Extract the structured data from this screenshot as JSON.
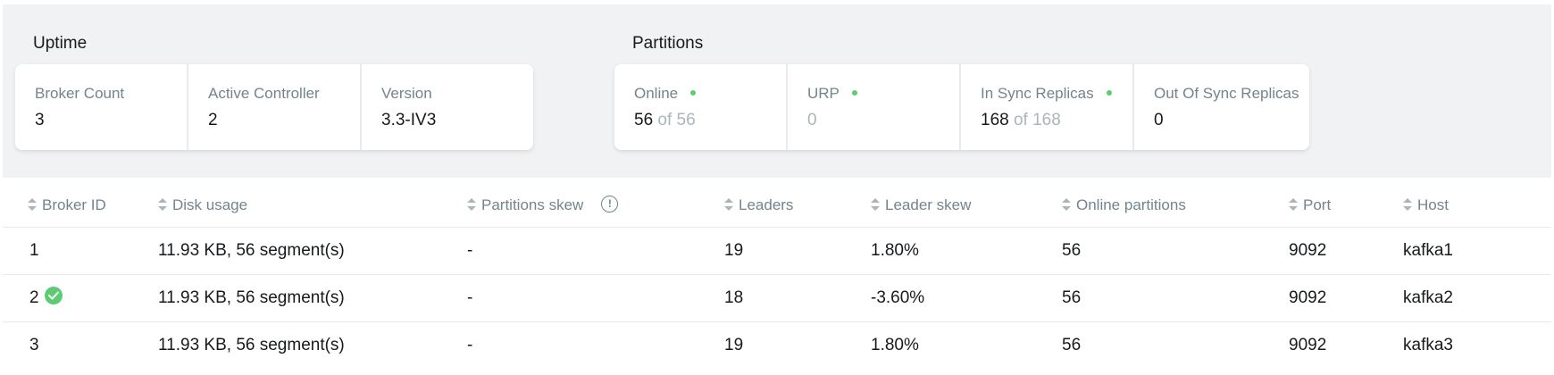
{
  "uptime": {
    "title": "Uptime",
    "cards": [
      {
        "label": "Broker Count",
        "value": "3"
      },
      {
        "label": "Active Controller",
        "value": "2"
      },
      {
        "label": "Version",
        "value": "3.3-IV3"
      }
    ]
  },
  "partitions": {
    "title": "Partitions",
    "cards": [
      {
        "label": "Online",
        "value": "56",
        "suffix": "of 56",
        "status_dot": true
      },
      {
        "label": "URP",
        "value": "",
        "suffix": "0",
        "status_dot": true
      },
      {
        "label": "In Sync Replicas",
        "value": "168",
        "suffix": "of 168",
        "status_dot": true
      },
      {
        "label": "Out Of Sync Replicas",
        "value": "0",
        "suffix": "",
        "status_dot": false
      }
    ]
  },
  "colors": {
    "status_green": "#5ccc73",
    "muted_text": "#abb5ba",
    "label_text": "#73848c"
  },
  "table": {
    "columns": [
      "Broker ID",
      "Disk usage",
      "Partitions skew",
      "Leaders",
      "Leader skew",
      "Online partitions",
      "Port",
      "Host"
    ],
    "rows": [
      {
        "broker_id": "1",
        "is_controller": false,
        "disk_usage": "11.93 KB, 56 segment(s)",
        "partitions_skew": "-",
        "leaders": "19",
        "leader_skew": "1.80%",
        "online_partitions": "56",
        "port": "9092",
        "host": "kafka1"
      },
      {
        "broker_id": "2",
        "is_controller": true,
        "disk_usage": "11.93 KB, 56 segment(s)",
        "partitions_skew": "-",
        "leaders": "18",
        "leader_skew": "-3.60%",
        "online_partitions": "56",
        "port": "9092",
        "host": "kafka2"
      },
      {
        "broker_id": "3",
        "is_controller": false,
        "disk_usage": "11.93 KB, 56 segment(s)",
        "partitions_skew": "-",
        "leaders": "19",
        "leader_skew": "1.80%",
        "online_partitions": "56",
        "port": "9092",
        "host": "kafka3"
      }
    ]
  }
}
